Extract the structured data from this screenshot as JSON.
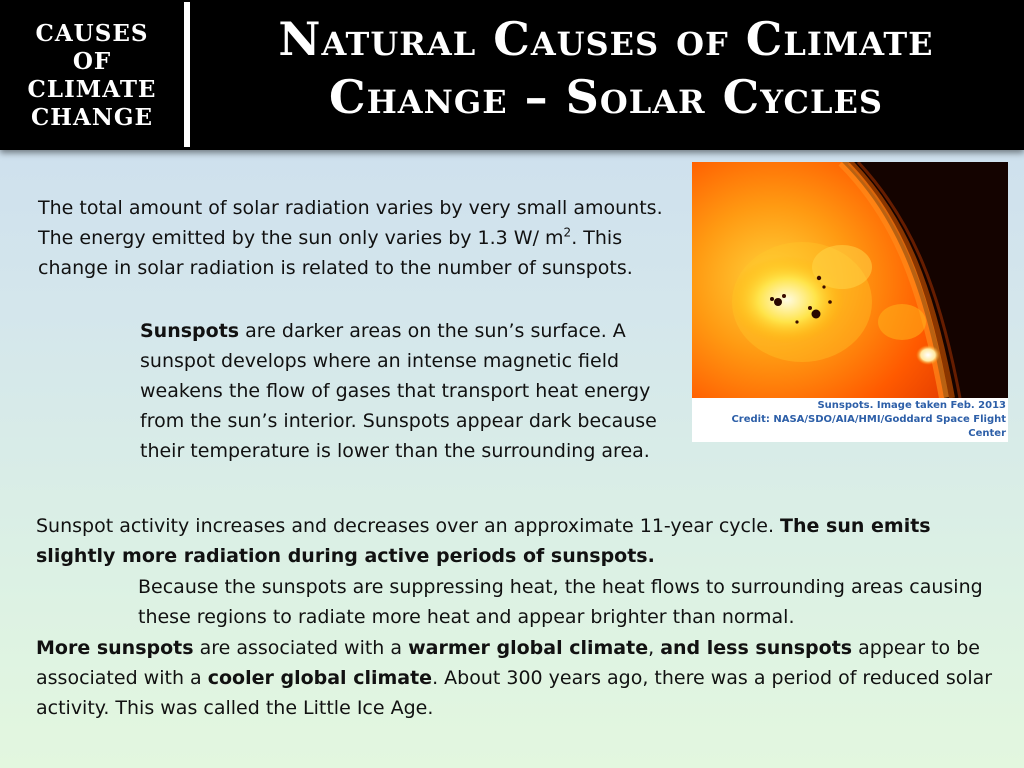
{
  "header": {
    "section_lines": [
      "CAUSES",
      "OF",
      "CLIMATE",
      "CHANGE"
    ],
    "title_lines": [
      "Natural Causes of Climate",
      "Change – Solar Cycles"
    ]
  },
  "content": {
    "p1": {
      "before_sup": "The total amount of solar radiation varies by very small amounts. The energy emitted by the sun only varies by 1.3 W/ m",
      "sup": "2",
      "after_sup": ". This change in solar radiation is related to the number of sunspots."
    },
    "p2": {
      "term": "Sunspots",
      "text": " are darker areas on the sun’s surface. A sunspot develops where an intense magnetic field weakens the flow of gases that transport heat energy from the sun’s interior. Sunspots appear dark because their temperature is lower than the surrounding area."
    },
    "p3": {
      "text": "Sunspot activity increases and decreases over an approximate 11-year cycle. ",
      "bold": "The sun emits slightly more radiation during active periods of sunspots."
    },
    "p4": {
      "text": "Because the sunspots are suppressing heat, the heat flows to surrounding areas causing these regions to radiate more heat and appear brighter than normal."
    },
    "p5": {
      "b1": "More sunspots",
      "t1": " are associated with a ",
      "b2": "warmer global climate",
      "t2": ", ",
      "b3": "and less sunspots",
      "t3": " appear to be associated with a ",
      "b4": "cooler global climate",
      "t4": ". About 300 years ago, there was a period of reduced solar activity. This was called the Little Ice Age."
    }
  },
  "figure": {
    "caption_line1": "Sunspots. Image taken Feb. 2013",
    "caption_line2": "Credit: NASA/SDO/AIA/HMI/Goddard Space Flight Center"
  },
  "colors": {
    "header_bg": "#000000",
    "caption_blue": "#2d5fa8",
    "sun_orange": "#ff5a00"
  }
}
